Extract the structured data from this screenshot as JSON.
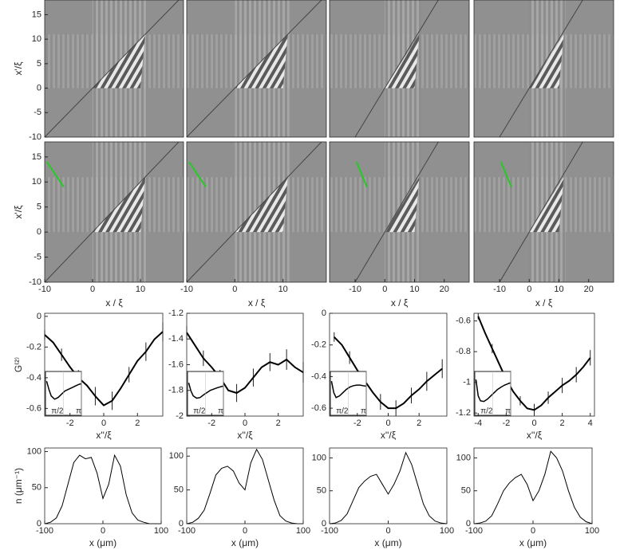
{
  "chart_data": [
    {
      "type": "heatmap",
      "xlim": [
        -10,
        19
      ],
      "ylim": [
        -10,
        18
      ],
      "yticks": [
        -10,
        -5,
        0,
        5,
        10,
        15
      ],
      "ylabel": "x'/ξ"
    },
    {
      "type": "heatmap",
      "xlim": [
        -10,
        19
      ],
      "ylim": [
        -10,
        18
      ]
    },
    {
      "type": "heatmap",
      "xlim": [
        -18.6,
        28.4
      ],
      "ylim": [
        -10,
        18
      ]
    },
    {
      "type": "heatmap",
      "xlim": [
        -18.6,
        28.4
      ],
      "ylim": [
        -10,
        18
      ]
    },
    {
      "type": "heatmap",
      "xlim": [
        -10,
        19
      ],
      "ylim": [
        -10,
        18
      ],
      "yticks": [
        -10,
        -5,
        0,
        5,
        10,
        15
      ],
      "xticks": [
        -10,
        0,
        10
      ],
      "ylabel": "x'/ξ",
      "xlabel": "x / ξ"
    },
    {
      "type": "heatmap",
      "xlim": [
        -10,
        19
      ],
      "ylim": [
        -10,
        18
      ],
      "xticks": [
        -10,
        0,
        10
      ],
      "xlabel": "x / ξ"
    },
    {
      "type": "heatmap",
      "xlim": [
        -18.6,
        28.4
      ],
      "ylim": [
        -10,
        18
      ],
      "xticks": [
        -10,
        0,
        10,
        20
      ],
      "xlabel": "x / ξ"
    },
    {
      "type": "heatmap",
      "xlim": [
        -18.6,
        28.4
      ],
      "ylim": [
        -10,
        18
      ],
      "xticks": [
        -10,
        0,
        10,
        20
      ],
      "xlabel": "x / ξ"
    },
    {
      "type": "errorline",
      "xlim": [
        -3.5,
        3.5
      ],
      "ylim": [
        -0.65,
        0.02
      ],
      "xticks": [
        -2,
        0,
        2
      ],
      "yticks": [
        -0.6,
        -0.4,
        -0.2,
        0
      ],
      "ylabel": "G⁽²⁾",
      "xlabel": "x''/ξ",
      "x": [
        -3.5,
        -3,
        -2.5,
        -2,
        -1.5,
        -1,
        -0.5,
        0,
        0.5,
        1,
        1.5,
        2,
        2.5,
        3,
        3.5
      ],
      "values": [
        -0.12,
        -0.17,
        -0.25,
        -0.33,
        -0.4,
        -0.45,
        -0.52,
        -0.58,
        -0.55,
        -0.47,
        -0.38,
        -0.29,
        -0.23,
        -0.15,
        -0.1
      ],
      "errors": [
        0.03,
        0.04,
        0.04,
        0.05,
        0.05,
        0.05,
        0.06,
        0.06,
        0.06,
        0.05,
        0.05,
        0.05,
        0.06,
        0.06,
        0.06
      ],
      "inset": {
        "xlim": [
          0,
          3.1416
        ],
        "ylim": [
          0,
          1
        ],
        "xticks": [
          {
            "value": 1.5708,
            "label": "π/2"
          },
          {
            "value": 3.1416,
            "label": "π"
          }
        ],
        "x": [
          0.1,
          0.3,
          0.5,
          0.8,
          1.1,
          1.4,
          1.7,
          2,
          2.3,
          2.6,
          2.9,
          3.1
        ],
        "values": [
          0.8,
          0.55,
          0.35,
          0.25,
          0.3,
          0.4,
          0.5,
          0.55,
          0.6,
          0.65,
          0.7,
          0.72
        ]
      }
    },
    {
      "type": "errorline",
      "xlim": [
        -3.5,
        3.5
      ],
      "ylim": [
        -2,
        -1.2
      ],
      "xticks": [
        -2,
        0,
        2
      ],
      "yticks": [
        -2,
        -1.8,
        -1.6,
        -1.4,
        -1.2
      ],
      "xlabel": "x''/ξ",
      "x": [
        -3.5,
        -3,
        -2.5,
        -2,
        -1.5,
        -1,
        -0.5,
        0,
        0.5,
        1,
        1.5,
        2,
        2.5,
        3,
        3.5
      ],
      "values": [
        -1.35,
        -1.45,
        -1.55,
        -1.62,
        -1.7,
        -1.8,
        -1.82,
        -1.78,
        -1.7,
        -1.62,
        -1.58,
        -1.6,
        -1.56,
        -1.62,
        -1.66
      ],
      "errors": [
        0.05,
        0.05,
        0.06,
        0.06,
        0.06,
        0.06,
        0.07,
        0.07,
        0.07,
        0.07,
        0.07,
        0.08,
        0.08,
        0.08,
        0.08
      ],
      "inset": {
        "xlim": [
          0,
          3.1416
        ],
        "ylim": [
          0,
          1
        ],
        "xticks": [
          {
            "value": 1.5708,
            "label": "π/2"
          },
          {
            "value": 3.1416,
            "label": "π"
          }
        ],
        "x": [
          0.1,
          0.3,
          0.5,
          0.8,
          1.1,
          1.4,
          1.7,
          2,
          2.3,
          2.6,
          2.9,
          3.1
        ],
        "values": [
          0.75,
          0.5,
          0.35,
          0.28,
          0.3,
          0.38,
          0.45,
          0.52,
          0.56,
          0.6,
          0.63,
          0.65
        ]
      }
    },
    {
      "type": "errorline",
      "xlim": [
        -3.8,
        3.8
      ],
      "ylim": [
        -0.65,
        0
      ],
      "xticks": [
        -2,
        0,
        2
      ],
      "yticks": [
        -0.6,
        -0.4,
        -0.2,
        0
      ],
      "xlabel": "x''/ξ",
      "x": [
        -3.5,
        -3,
        -2.5,
        -2,
        -1.5,
        -1,
        -0.5,
        0,
        0.5,
        1,
        1.5,
        2,
        2.5,
        3,
        3.5
      ],
      "values": [
        -0.15,
        -0.2,
        -0.28,
        -0.36,
        -0.43,
        -0.5,
        -0.56,
        -0.6,
        -0.6,
        -0.57,
        -0.52,
        -0.48,
        -0.43,
        -0.39,
        -0.35
      ],
      "errors": [
        0.03,
        0.03,
        0.04,
        0.04,
        0.04,
        0.05,
        0.05,
        0.05,
        0.05,
        0.05,
        0.05,
        0.06,
        0.06,
        0.06,
        0.06
      ],
      "inset": {
        "xlim": [
          0,
          3.1416
        ],
        "ylim": [
          0,
          1
        ],
        "xticks": [
          {
            "value": 1.5708,
            "label": "π/2"
          },
          {
            "value": 3.1416,
            "label": "π"
          }
        ],
        "x": [
          0.1,
          0.3,
          0.5,
          0.8,
          1.1,
          1.4,
          1.7,
          2,
          2.3,
          2.6,
          2.9,
          3.1
        ],
        "values": [
          0.8,
          0.45,
          0.3,
          0.35,
          0.45,
          0.55,
          0.62,
          0.66,
          0.68,
          0.68,
          0.66,
          0.65
        ]
      }
    },
    {
      "type": "errorline",
      "xlim": [
        -4.3,
        4.3
      ],
      "ylim": [
        -1.22,
        -0.55
      ],
      "xticks": [
        -4,
        -2,
        0,
        2,
        4
      ],
      "yticks": [
        -1.2,
        -1,
        -0.8,
        -0.6
      ],
      "xlabel": "x''/ξ",
      "x": [
        -4,
        -3.5,
        -3,
        -2.5,
        -2,
        -1.5,
        -1,
        -0.5,
        0,
        0.5,
        1,
        1.5,
        2,
        2.5,
        3,
        3.5,
        4
      ],
      "values": [
        -0.57,
        -0.68,
        -0.78,
        -0.88,
        -0.98,
        -1.06,
        -1.12,
        -1.17,
        -1.18,
        -1.15,
        -1.1,
        -1.06,
        -1.02,
        -0.99,
        -0.95,
        -0.9,
        -0.84
      ],
      "errors": [
        0.02,
        0.02,
        0.03,
        0.03,
        0.03,
        0.03,
        0.03,
        0.04,
        0.04,
        0.04,
        0.04,
        0.04,
        0.05,
        0.05,
        0.05,
        0.05,
        0.05
      ],
      "inset": {
        "xlim": [
          0,
          3.1416
        ],
        "ylim": [
          0,
          1
        ],
        "xticks": [
          {
            "value": 1.5708,
            "label": "π/2"
          },
          {
            "value": 3.1416,
            "label": "π"
          }
        ],
        "x": [
          0.1,
          0.3,
          0.5,
          0.8,
          1.1,
          1.4,
          1.7,
          2,
          2.3,
          2.6,
          2.9,
          3.1
        ],
        "values": [
          0.85,
          0.35,
          0.2,
          0.18,
          0.25,
          0.35,
          0.45,
          0.55,
          0.62,
          0.68,
          0.72,
          0.75
        ]
      }
    },
    {
      "type": "line",
      "xlim": [
        -100,
        100
      ],
      "ylim": [
        0,
        105
      ],
      "xticks": [
        -100,
        0,
        100
      ],
      "yticks": [
        0,
        50,
        100
      ],
      "ylabel": "n (μm⁻¹)",
      "xlabel": "x (μm)",
      "x": [
        -100,
        -90,
        -80,
        -70,
        -60,
        -50,
        -40,
        -30,
        -20,
        -10,
        0,
        10,
        20,
        30,
        40,
        50,
        60,
        70,
        80,
        90,
        100
      ],
      "values": [
        0,
        2,
        8,
        25,
        55,
        85,
        95,
        90,
        92,
        70,
        35,
        55,
        95,
        80,
        40,
        15,
        5,
        2,
        0,
        0,
        0
      ]
    },
    {
      "type": "line",
      "xlim": [
        -100,
        100
      ],
      "ylim": [
        0,
        112
      ],
      "xticks": [
        -100,
        0,
        100
      ],
      "yticks": [
        0,
        50,
        100
      ],
      "xlabel": "x (μm)",
      "x": [
        -100,
        -90,
        -80,
        -70,
        -60,
        -50,
        -40,
        -30,
        -20,
        -10,
        0,
        10,
        20,
        30,
        40,
        50,
        60,
        70,
        80,
        90,
        100
      ],
      "values": [
        0,
        2,
        8,
        20,
        45,
        72,
        82,
        85,
        78,
        60,
        50,
        90,
        110,
        95,
        65,
        35,
        12,
        4,
        1,
        0,
        0
      ]
    },
    {
      "type": "line",
      "xlim": [
        -100,
        100
      ],
      "ylim": [
        0,
        115
      ],
      "xticks": [
        -100,
        0,
        100
      ],
      "yticks": [
        0,
        50,
        100
      ],
      "xlabel": "x (μm)",
      "x": [
        -100,
        -90,
        -80,
        -70,
        -60,
        -50,
        -40,
        -30,
        -20,
        -10,
        0,
        10,
        20,
        30,
        40,
        50,
        60,
        70,
        80,
        90,
        100
      ],
      "values": [
        0,
        1,
        5,
        15,
        35,
        55,
        65,
        72,
        75,
        60,
        45,
        60,
        80,
        108,
        90,
        60,
        30,
        12,
        4,
        1,
        0
      ]
    },
    {
      "type": "line",
      "xlim": [
        -100,
        100
      ],
      "ylim": [
        0,
        115
      ],
      "xticks": [
        -100,
        0,
        100
      ],
      "yticks": [
        0,
        50,
        100
      ],
      "xlabel": "x (μm)",
      "x": [
        -100,
        -90,
        -80,
        -70,
        -60,
        -50,
        -40,
        -30,
        -20,
        -10,
        0,
        10,
        20,
        30,
        40,
        50,
        60,
        70,
        80,
        90,
        100
      ],
      "values": [
        0,
        1,
        4,
        12,
        30,
        50,
        62,
        70,
        75,
        60,
        35,
        50,
        75,
        110,
        100,
        80,
        50,
        25,
        10,
        3,
        0
      ]
    }
  ]
}
